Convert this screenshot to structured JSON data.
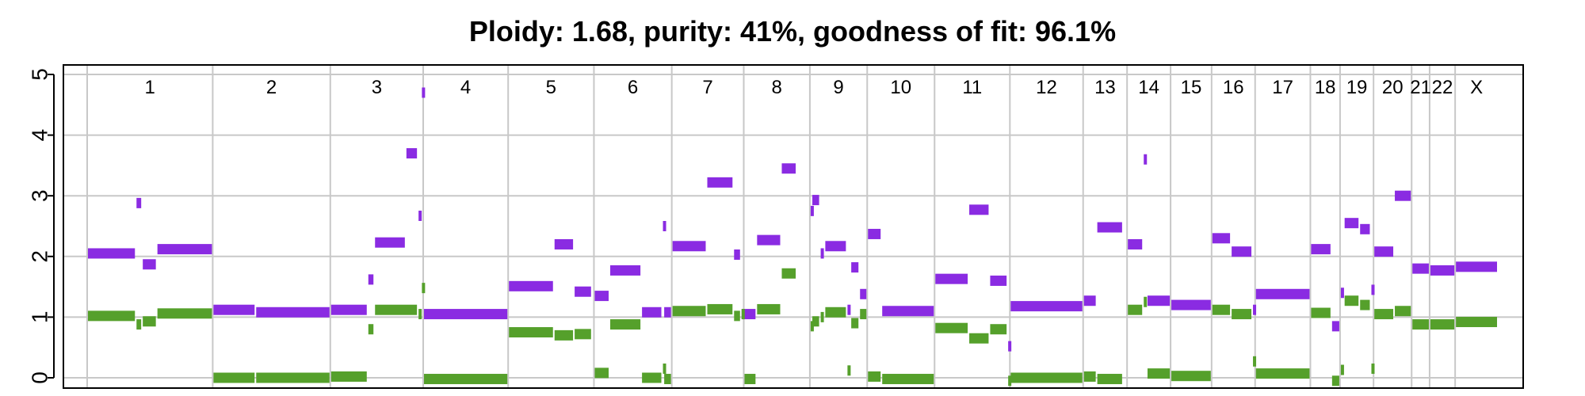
{
  "chart_data": {
    "type": "segments",
    "title": "Ploidy: 1.68, purity: 41%, goodness of fit: 96.1%",
    "xlabel": "",
    "ylabel": "",
    "ylim": [
      0,
      5
    ],
    "yticks": [
      "0",
      "1",
      "2",
      "3",
      "4",
      "5"
    ],
    "grid": true,
    "colors": {
      "major": "#8a2be2",
      "minor": "#55a02b",
      "grid": "#c8c8c8"
    },
    "chromosomes": [
      {
        "name": "1",
        "start": 0,
        "end": 300
      },
      {
        "name": "2",
        "start": 300,
        "end": 581
      },
      {
        "name": "3",
        "start": 581,
        "end": 803
      },
      {
        "name": "4",
        "start": 803,
        "end": 1006
      },
      {
        "name": "5",
        "start": 1006,
        "end": 1211
      },
      {
        "name": "6",
        "start": 1211,
        "end": 1397
      },
      {
        "name": "7",
        "start": 1397,
        "end": 1569
      },
      {
        "name": "8",
        "start": 1569,
        "end": 1727
      },
      {
        "name": "9",
        "start": 1727,
        "end": 1864
      },
      {
        "name": "10",
        "start": 1864,
        "end": 2025
      },
      {
        "name": "11",
        "start": 2025,
        "end": 2205
      },
      {
        "name": "12",
        "start": 2205,
        "end": 2380
      },
      {
        "name": "13",
        "start": 2380,
        "end": 2485
      },
      {
        "name": "14",
        "start": 2485,
        "end": 2589
      },
      {
        "name": "15",
        "start": 2589,
        "end": 2687
      },
      {
        "name": "16",
        "start": 2687,
        "end": 2791
      },
      {
        "name": "17",
        "start": 2791,
        "end": 2923
      },
      {
        "name": "18",
        "start": 2923,
        "end": 2994
      },
      {
        "name": "19",
        "start": 2994,
        "end": 3074
      },
      {
        "name": "20",
        "start": 3074,
        "end": 3165
      },
      {
        "name": "21",
        "start": 3165,
        "end": 3208
      },
      {
        "name": "22",
        "start": 3208,
        "end": 3269
      },
      {
        "name": "X",
        "start": 3269,
        "end": 3371
      }
    ],
    "series": [
      {
        "name": "major",
        "segments": [
          [
            0,
            116,
            2.05
          ],
          [
            116,
            131,
            2.88
          ],
          [
            131,
            166,
            1.87
          ],
          [
            166,
            300,
            2.12
          ],
          [
            300,
            402,
            1.12
          ],
          [
            402,
            581,
            1.08
          ],
          [
            581,
            670,
            1.12
          ],
          [
            670,
            686,
            1.62
          ],
          [
            686,
            761,
            2.23
          ],
          [
            761,
            790,
            3.7
          ],
          [
            790,
            798,
            2.67
          ],
          [
            798,
            803,
            4.7
          ],
          [
            803,
            1006,
            1.05
          ],
          [
            1006,
            1115,
            1.51
          ],
          [
            1115,
            1163,
            2.2
          ],
          [
            1163,
            1206,
            1.42
          ],
          [
            1211,
            1248,
            1.35
          ],
          [
            1248,
            1324,
            1.77
          ],
          [
            1324,
            1374,
            1.08
          ],
          [
            1374,
            1377,
            2.5
          ],
          [
            1377,
            1397,
            1.08
          ],
          [
            1397,
            1480,
            2.17
          ],
          [
            1480,
            1544,
            3.22
          ],
          [
            1544,
            1562,
            2.03
          ],
          [
            1562,
            1569,
            1.05
          ],
          [
            1569,
            1599,
            1.05
          ],
          [
            1599,
            1658,
            2.27
          ],
          [
            1658,
            1695,
            3.45
          ],
          [
            1727,
            1731,
            2.75
          ],
          [
            1731,
            1751,
            2.93
          ],
          [
            1751,
            1762,
            2.05
          ],
          [
            1762,
            1815,
            2.17
          ],
          [
            1815,
            1824,
            1.12
          ],
          [
            1824,
            1845,
            1.82
          ],
          [
            1845,
            1864,
            1.38
          ],
          [
            1864,
            1898,
            2.37
          ],
          [
            1898,
            2025,
            1.1
          ],
          [
            2025,
            2106,
            1.63
          ],
          [
            2106,
            2156,
            2.77
          ],
          [
            2156,
            2199,
            1.6
          ],
          [
            2199,
            2205,
            0.52
          ],
          [
            2205,
            2380,
            1.18
          ],
          [
            2380,
            2412,
            1.27
          ],
          [
            2412,
            2475,
            2.48
          ],
          [
            2485,
            2523,
            2.2
          ],
          [
            2523,
            2532,
            3.6
          ],
          [
            2532,
            2589,
            1.27
          ],
          [
            2589,
            2687,
            1.2
          ],
          [
            2687,
            2733,
            2.3
          ],
          [
            2733,
            2784,
            2.08
          ],
          [
            2784,
            2791,
            1.12
          ],
          [
            2791,
            2923,
            1.38
          ],
          [
            2923,
            2973,
            2.12
          ],
          [
            2973,
            2994,
            0.85
          ],
          [
            2994,
            3003,
            1.4
          ],
          [
            3003,
            3040,
            2.55
          ],
          [
            3040,
            3067,
            2.45
          ],
          [
            3067,
            3074,
            1.45
          ],
          [
            3074,
            3123,
            2.08
          ],
          [
            3123,
            3165,
            3.0
          ],
          [
            3165,
            3208,
            1.8
          ],
          [
            3208,
            3269,
            1.77
          ],
          [
            3269,
            3371,
            1.83
          ]
        ]
      },
      {
        "name": "minor",
        "segments": [
          [
            0,
            116,
            1.02
          ],
          [
            116,
            131,
            0.88
          ],
          [
            131,
            166,
            0.93
          ],
          [
            166,
            300,
            1.06
          ],
          [
            300,
            402,
            0.0
          ],
          [
            402,
            581,
            0.0
          ],
          [
            581,
            670,
            0.02
          ],
          [
            670,
            686,
            0.8
          ],
          [
            686,
            790,
            1.12
          ],
          [
            790,
            798,
            1.05
          ],
          [
            798,
            803,
            1.48
          ],
          [
            803,
            1006,
            -0.02
          ],
          [
            1006,
            1115,
            0.75
          ],
          [
            1115,
            1163,
            0.7
          ],
          [
            1163,
            1206,
            0.72
          ],
          [
            1211,
            1248,
            0.08
          ],
          [
            1248,
            1324,
            0.88
          ],
          [
            1324,
            1374,
            0.0
          ],
          [
            1374,
            1377,
            0.15
          ],
          [
            1377,
            1397,
            -0.02
          ],
          [
            1397,
            1480,
            1.1
          ],
          [
            1480,
            1544,
            1.13
          ],
          [
            1544,
            1562,
            1.02
          ],
          [
            1562,
            1569,
            1.05
          ],
          [
            1569,
            1599,
            -0.02
          ],
          [
            1599,
            1658,
            1.13
          ],
          [
            1658,
            1695,
            1.72
          ],
          [
            1727,
            1731,
            0.85
          ],
          [
            1731,
            1751,
            0.93
          ],
          [
            1751,
            1762,
            1.0
          ],
          [
            1762,
            1815,
            1.08
          ],
          [
            1815,
            1824,
            0.12
          ],
          [
            1824,
            1845,
            0.9
          ],
          [
            1845,
            1864,
            1.05
          ],
          [
            1864,
            1898,
            0.02
          ],
          [
            1898,
            2025,
            -0.02
          ],
          [
            2025,
            2106,
            0.82
          ],
          [
            2106,
            2156,
            0.65
          ],
          [
            2156,
            2199,
            0.8
          ],
          [
            2199,
            2205,
            -0.05
          ],
          [
            2205,
            2380,
            0.0
          ],
          [
            2380,
            2412,
            0.02
          ],
          [
            2412,
            2475,
            -0.02
          ],
          [
            2485,
            2523,
            1.12
          ],
          [
            2523,
            2532,
            1.25
          ],
          [
            2532,
            2589,
            0.07
          ],
          [
            2589,
            2687,
            0.03
          ],
          [
            2687,
            2733,
            1.12
          ],
          [
            2733,
            2784,
            1.05
          ],
          [
            2784,
            2791,
            0.27
          ],
          [
            2791,
            2923,
            0.07
          ],
          [
            2923,
            2973,
            1.07
          ],
          [
            2973,
            2994,
            -0.05
          ],
          [
            2994,
            3003,
            0.13
          ],
          [
            3003,
            3040,
            1.27
          ],
          [
            3040,
            3067,
            1.2
          ],
          [
            3067,
            3074,
            0.15
          ],
          [
            3074,
            3123,
            1.05
          ],
          [
            3123,
            3165,
            1.1
          ],
          [
            3165,
            3208,
            0.88
          ],
          [
            3208,
            3269,
            0.88
          ],
          [
            3269,
            3371,
            0.92
          ]
        ]
      }
    ]
  }
}
